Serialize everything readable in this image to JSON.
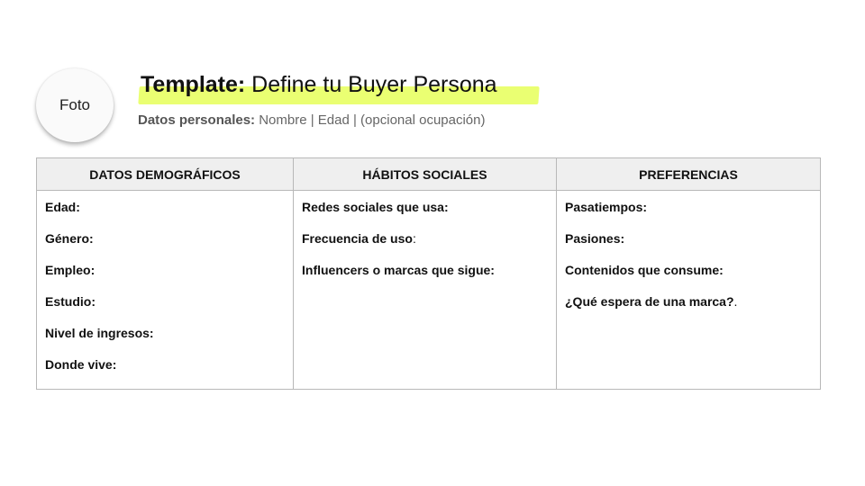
{
  "photo": {
    "label": "Foto"
  },
  "header": {
    "title_bold": "Template:",
    "title_rest": " Define tu Buyer Persona",
    "subtitle_bold": "Datos personales:",
    "subtitle_rest": " Nombre | Edad | (opcional ocupación)",
    "highlight_color": "#eaff72"
  },
  "table": {
    "columns": [
      {
        "header": "DATOS DEMOGRÁFICOS",
        "items": [
          "Edad:",
          "Género:",
          "Empleo:",
          "Estudio:",
          "Nivel de ingresos:",
          "Donde vive:"
        ]
      },
      {
        "header": "HÁBITOS SOCIALES",
        "items": [
          "Redes sociales que usa:",
          "Frecuencia de uso",
          "Influencers o marcas que sigue:"
        ],
        "item_suffix_1": ":"
      },
      {
        "header": "PREFERENCIAS",
        "items": [
          "Pasatiempos:",
          "Pasiones:",
          "Contenidos que consume:",
          "¿Qué espera de una marca?"
        ],
        "item_suffix_3": "."
      }
    ]
  }
}
